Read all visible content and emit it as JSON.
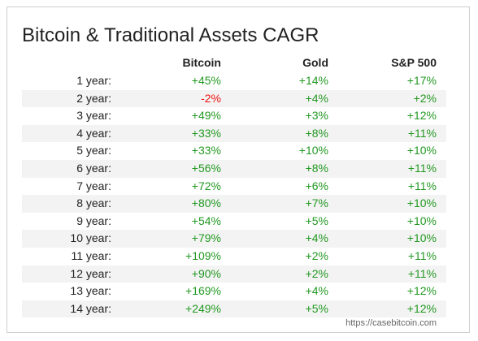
{
  "title": "Bitcoin & Traditional Assets CAGR",
  "columns": [
    "Bitcoin",
    "Gold",
    "S&P 500"
  ],
  "rows": [
    {
      "label": "1 year:",
      "btc": "+45%",
      "gold": "+14%",
      "spx": "+17%"
    },
    {
      "label": "2 year:",
      "btc": "-2%",
      "gold": "+4%",
      "spx": "+2%"
    },
    {
      "label": "3 year:",
      "btc": "+49%",
      "gold": "+3%",
      "spx": "+12%"
    },
    {
      "label": "4 year:",
      "btc": "+33%",
      "gold": "+8%",
      "spx": "+11%"
    },
    {
      "label": "5 year:",
      "btc": "+33%",
      "gold": "+10%",
      "spx": "+10%"
    },
    {
      "label": "6 year:",
      "btc": "+56%",
      "gold": "+8%",
      "spx": "+11%"
    },
    {
      "label": "7 year:",
      "btc": "+72%",
      "gold": "+6%",
      "spx": "+11%"
    },
    {
      "label": "8 year:",
      "btc": "+80%",
      "gold": "+7%",
      "spx": "+10%"
    },
    {
      "label": "9 year:",
      "btc": "+54%",
      "gold": "+5%",
      "spx": "+10%"
    },
    {
      "label": "10 year:",
      "btc": "+79%",
      "gold": "+4%",
      "spx": "+10%"
    },
    {
      "label": "11 year:",
      "btc": "+109%",
      "gold": "+2%",
      "spx": "+11%"
    },
    {
      "label": "12 year:",
      "btc": "+90%",
      "gold": "+2%",
      "spx": "+11%"
    },
    {
      "label": "13 year:",
      "btc": "+169%",
      "gold": "+4%",
      "spx": "+12%"
    },
    {
      "label": "14 year:",
      "btc": "+249%",
      "gold": "+5%",
      "spx": "+12%"
    }
  ],
  "source": "https://casebitcoin.com",
  "colors": {
    "positive": "#229922",
    "negative": "#ee1111",
    "stripe": "#f3f3f3"
  }
}
